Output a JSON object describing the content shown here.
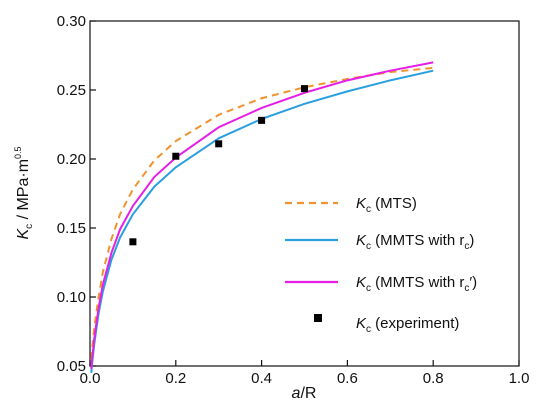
{
  "chart_data": {
    "type": "line",
    "title": "",
    "xlabel": {
      "main": "a",
      "rest": "/R"
    },
    "ylabel": {
      "main": "K",
      "sub": "c",
      "rest": " / MPa·m",
      "sup": "0.5"
    },
    "xlim": [
      0.0,
      1.0
    ],
    "ylim": [
      0.05,
      0.3
    ],
    "x_ticks": [
      "0.0",
      "0.2",
      "0.4",
      "0.6",
      "0.8",
      "1.0"
    ],
    "y_ticks": [
      "0.05",
      "0.10",
      "0.15",
      "0.20",
      "0.25",
      "0.30"
    ],
    "grid": false,
    "legend_position": "bottom-right",
    "series": [
      {
        "name": {
          "main": "K",
          "sub": "c",
          "rest": " (MTS)"
        },
        "kind": "line",
        "style": "dashed",
        "color": "#f0922e",
        "x": [
          0.003,
          0.005,
          0.01,
          0.02,
          0.03,
          0.05,
          0.07,
          0.1,
          0.15,
          0.2,
          0.3,
          0.4,
          0.5,
          0.6,
          0.7,
          0.8
        ],
        "y": [
          0.055,
          0.062,
          0.078,
          0.1,
          0.118,
          0.142,
          0.16,
          0.178,
          0.199,
          0.213,
          0.232,
          0.244,
          0.252,
          0.258,
          0.263,
          0.266
        ]
      },
      {
        "name": {
          "main": "K",
          "sub": "c",
          "rest": " (MMTS with r",
          "rsub": "c",
          "tail": ")"
        },
        "kind": "line",
        "style": "solid",
        "color": "#2a9fe0",
        "x": [
          0.003,
          0.005,
          0.01,
          0.02,
          0.03,
          0.05,
          0.07,
          0.1,
          0.15,
          0.2,
          0.3,
          0.4,
          0.5,
          0.6,
          0.7,
          0.8
        ],
        "y": [
          0.045,
          0.052,
          0.066,
          0.088,
          0.104,
          0.127,
          0.143,
          0.16,
          0.18,
          0.194,
          0.215,
          0.229,
          0.24,
          0.249,
          0.257,
          0.264
        ]
      },
      {
        "name": {
          "main": "K",
          "sub": "c",
          "rest": " (MMTS with r",
          "rsub": "c",
          "tail": "′)"
        },
        "kind": "line",
        "style": "solid",
        "color": "#e61ee6",
        "x": [
          0.003,
          0.005,
          0.01,
          0.02,
          0.03,
          0.05,
          0.07,
          0.1,
          0.15,
          0.2,
          0.3,
          0.4,
          0.5,
          0.6,
          0.7,
          0.8
        ],
        "y": [
          0.048,
          0.055,
          0.07,
          0.092,
          0.109,
          0.132,
          0.149,
          0.166,
          0.187,
          0.201,
          0.223,
          0.237,
          0.248,
          0.257,
          0.264,
          0.27
        ]
      },
      {
        "name": {
          "main": "K",
          "sub": "c",
          "rest": " (experiment)"
        },
        "kind": "scatter",
        "color": "#000000",
        "x": [
          0.1,
          0.2,
          0.3,
          0.4,
          0.5
        ],
        "y": [
          0.14,
          0.202,
          0.211,
          0.228,
          0.251
        ]
      }
    ]
  }
}
